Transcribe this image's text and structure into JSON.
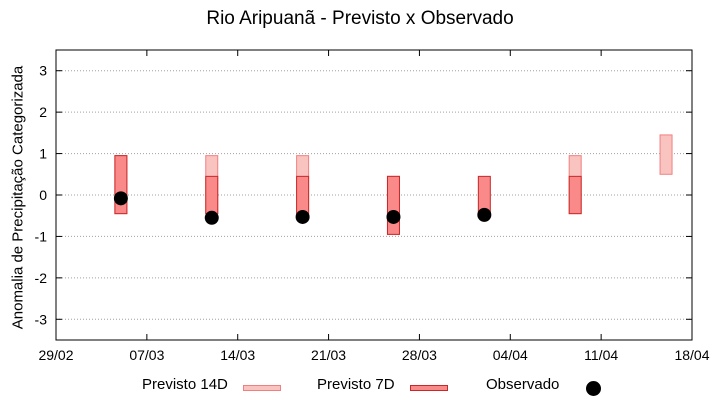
{
  "chart_data": {
    "type": "bar",
    "title": "Rio Aripuanã - Previsto x Observado",
    "ylabel": "Anomalia de Precipitação Categorizada",
    "xlabel": "",
    "ylim": [
      -3.5,
      3.5
    ],
    "yticks": [
      -3,
      -2,
      -1,
      0,
      1,
      2,
      3
    ],
    "xlim": [
      "2020-02-29",
      "2020-04-18"
    ],
    "xticks": [
      "29/02",
      "07/03",
      "14/03",
      "21/03",
      "28/03",
      "04/04",
      "11/04",
      "18/04"
    ],
    "grid": true,
    "legend_position": "bottom",
    "colors": {
      "p14": "#f9c4c0",
      "p14_edge": "#f08080",
      "p7": "#fa8a8a",
      "p7_edge": "#c82828",
      "obs": "#000000"
    },
    "series": [
      {
        "name": "Previsto 14D",
        "kind": "range",
        "points": [
          {
            "x": "2020-03-05",
            "low": -0.45,
            "high": 0.95
          },
          {
            "x": "2020-03-12",
            "low": -0.45,
            "high": 0.95
          },
          {
            "x": "2020-03-19",
            "low": -0.45,
            "high": 0.95
          },
          {
            "x": "2020-03-26",
            "low": -0.95,
            "high": 0.45
          },
          {
            "x": "2020-04-09",
            "low": -0.45,
            "high": 0.95
          },
          {
            "x": "2020-04-16",
            "low": 0.5,
            "high": 1.45
          }
        ]
      },
      {
        "name": "Previsto 7D",
        "kind": "range",
        "points": [
          {
            "x": "2020-03-05",
            "low": -0.45,
            "high": 0.95
          },
          {
            "x": "2020-03-12",
            "low": -0.45,
            "high": 0.45
          },
          {
            "x": "2020-03-19",
            "low": -0.45,
            "high": 0.45
          },
          {
            "x": "2020-03-26",
            "low": -0.95,
            "high": 0.45
          },
          {
            "x": "2020-04-02",
            "low": -0.45,
            "high": 0.45
          },
          {
            "x": "2020-04-09",
            "low": -0.45,
            "high": 0.45
          }
        ]
      },
      {
        "name": "Observado",
        "kind": "points",
        "points": [
          {
            "x": "2020-03-05",
            "y": -0.08
          },
          {
            "x": "2020-03-12",
            "y": -0.55
          },
          {
            "x": "2020-03-19",
            "y": -0.53
          },
          {
            "x": "2020-03-26",
            "y": -0.53
          },
          {
            "x": "2020-04-02",
            "y": -0.48
          }
        ]
      }
    ]
  }
}
